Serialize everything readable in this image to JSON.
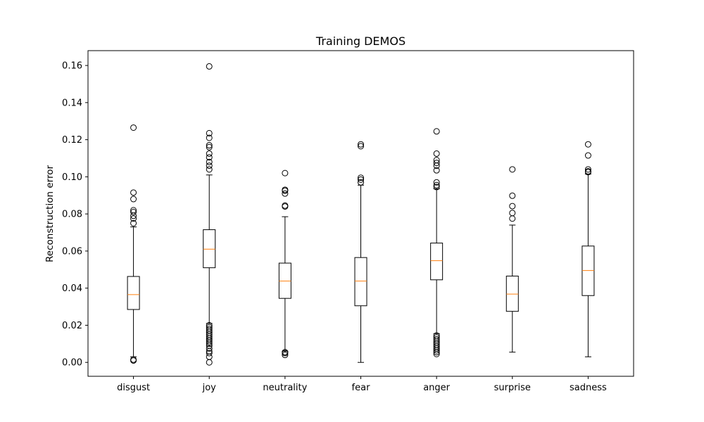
{
  "chart_data": {
    "type": "box",
    "title": "Training DEMOS",
    "xlabel": "",
    "ylabel": "Reconstruction error",
    "ylim": [
      -0.0075,
      0.168
    ],
    "yticks": [
      0.0,
      0.02,
      0.04,
      0.06,
      0.08,
      0.1,
      0.12,
      0.14,
      0.16
    ],
    "ytick_labels": [
      "0.00",
      "0.02",
      "0.04",
      "0.06",
      "0.08",
      "0.10",
      "0.12",
      "0.14",
      "0.16"
    ],
    "grid": false,
    "colors": {
      "median": "#ff7f0e",
      "box": "#000000"
    },
    "categories": [
      "disgust",
      "joy",
      "neutrality",
      "fear",
      "anger",
      "surprise",
      "sadness"
    ],
    "boxes": [
      {
        "name": "disgust",
        "whisker_low": 0.003,
        "q1": 0.0285,
        "median": 0.0365,
        "q3": 0.0463,
        "whisker_high": 0.073,
        "outliers": [
          0.001,
          0.0015,
          0.075,
          0.0775,
          0.079,
          0.081,
          0.082,
          0.088,
          0.0915,
          0.1265
        ]
      },
      {
        "name": "joy",
        "whisker_low": 0.021,
        "q1": 0.051,
        "median": 0.061,
        "q3": 0.0715,
        "whisker_high": 0.101,
        "outliers": [
          0.0,
          0.003,
          0.005,
          0.006,
          0.0075,
          0.009,
          0.01,
          0.011,
          0.012,
          0.013,
          0.014,
          0.015,
          0.016,
          0.017,
          0.018,
          0.019,
          0.02,
          0.104,
          0.106,
          0.108,
          0.1105,
          0.1125,
          0.116,
          0.117,
          0.121,
          0.1235,
          0.1595
        ]
      },
      {
        "name": "neutrality",
        "whisker_low": 0.006,
        "q1": 0.0345,
        "median": 0.0438,
        "q3": 0.0535,
        "whisker_high": 0.0785,
        "outliers": [
          0.004,
          0.005,
          0.0055,
          0.084,
          0.0845,
          0.091,
          0.0925,
          0.093,
          0.102
        ]
      },
      {
        "name": "fear",
        "whisker_low": 0.0,
        "q1": 0.0305,
        "median": 0.0438,
        "q3": 0.0565,
        "whisker_high": 0.0955,
        "outliers": [
          0.097,
          0.0985,
          0.0995,
          0.1165,
          0.1175
        ]
      },
      {
        "name": "anger",
        "whisker_low": 0.0155,
        "q1": 0.0445,
        "median": 0.0548,
        "q3": 0.0643,
        "whisker_high": 0.0935,
        "outliers": [
          0.0045,
          0.0055,
          0.0065,
          0.0075,
          0.0085,
          0.0095,
          0.0105,
          0.0115,
          0.0125,
          0.0135,
          0.0145,
          0.0945,
          0.0955,
          0.097,
          0.1035,
          0.106,
          0.1075,
          0.109,
          0.1125,
          0.1245
        ]
      },
      {
        "name": "surprise",
        "whisker_low": 0.0055,
        "q1": 0.0275,
        "median": 0.0368,
        "q3": 0.0465,
        "whisker_high": 0.074,
        "outliers": [
          0.0775,
          0.0805,
          0.0842,
          0.0898,
          0.104
        ]
      },
      {
        "name": "sadness",
        "whisker_low": 0.003,
        "q1": 0.036,
        "median": 0.0495,
        "q3": 0.0627,
        "whisker_high": 0.1015,
        "outliers": [
          0.1025,
          0.103,
          0.104,
          0.1115,
          0.1175
        ]
      }
    ]
  }
}
